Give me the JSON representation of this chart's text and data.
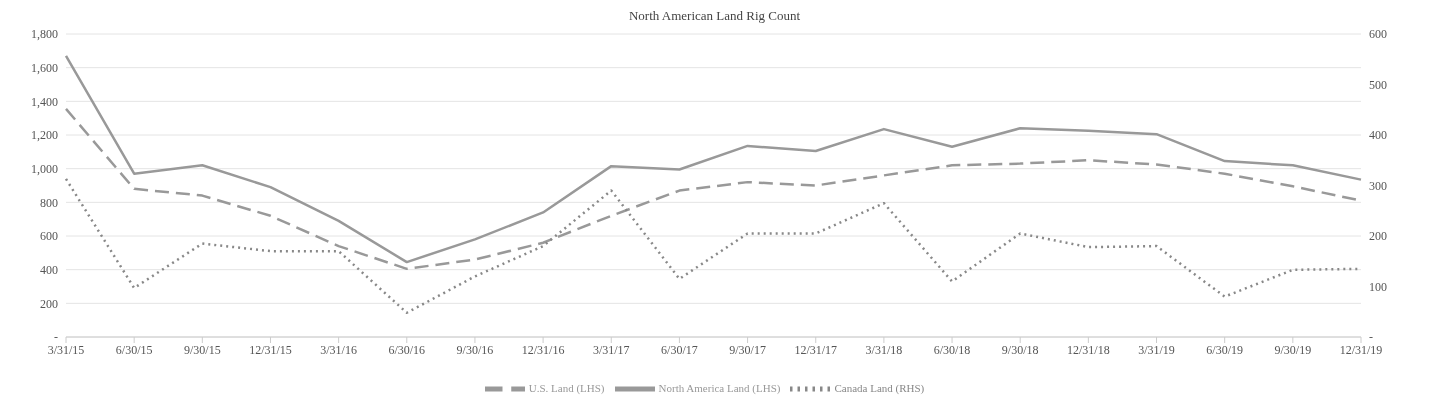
{
  "chart_data": {
    "type": "line",
    "title": "North American Land Rig Count",
    "categories": [
      "3/31/15",
      "6/30/15",
      "9/30/15",
      "12/31/15",
      "3/31/16",
      "6/30/16",
      "9/30/16",
      "12/31/16",
      "3/31/17",
      "6/30/17",
      "9/30/17",
      "12/31/17",
      "3/31/18",
      "6/30/18",
      "9/30/18",
      "12/31/18",
      "3/31/19",
      "6/30/19",
      "9/30/19",
      "12/31/19"
    ],
    "series": [
      {
        "name": "U.S. Land (LHS)",
        "color": "#999999",
        "line_style": "dashed",
        "values": [
          1355,
          880,
          840,
          720,
          540,
          405,
          460,
          560,
          720,
          870,
          920,
          900,
          960,
          1020,
          1030,
          1050,
          1025,
          970,
          895,
          810
        ]
      },
      {
        "name": "North America Land (LHS)",
        "color": "#999999",
        "line_style": "solid",
        "values": [
          1670,
          970,
          1020,
          890,
          690,
          445,
          580,
          740,
          1015,
          995,
          1135,
          1105,
          1235,
          1130,
          1240,
          1225,
          1205,
          1045,
          1020,
          935
        ]
      },
      {
        "name": "Canada Land (RHS)",
        "color": "#888888",
        "line_style": "dotted",
        "axis": "y2",
        "values": [
          313,
          97,
          185,
          170,
          170,
          48,
          120,
          180,
          290,
          115,
          205,
          205,
          265,
          110,
          205,
          178,
          180,
          80,
          133,
          135
        ]
      }
    ],
    "ylim": [
      0,
      1800
    ],
    "yticks": [
      {
        "value": 0,
        "label": "-"
      },
      200,
      400,
      600,
      800,
      {
        "value": 1000,
        "label": "1,000"
      },
      {
        "value": 1200,
        "label": "1,200"
      },
      {
        "value": 1400,
        "label": "1,400"
      },
      {
        "value": 1600,
        "label": "1,600"
      },
      {
        "value": 1800,
        "label": "1,800"
      }
    ],
    "y2lim": [
      0,
      600
    ],
    "y2ticks": [
      {
        "value": 0,
        "label": "-"
      },
      100,
      200,
      300,
      400,
      500,
      600
    ],
    "grid": "y",
    "legend": "bottom",
    "marker": "none"
  }
}
